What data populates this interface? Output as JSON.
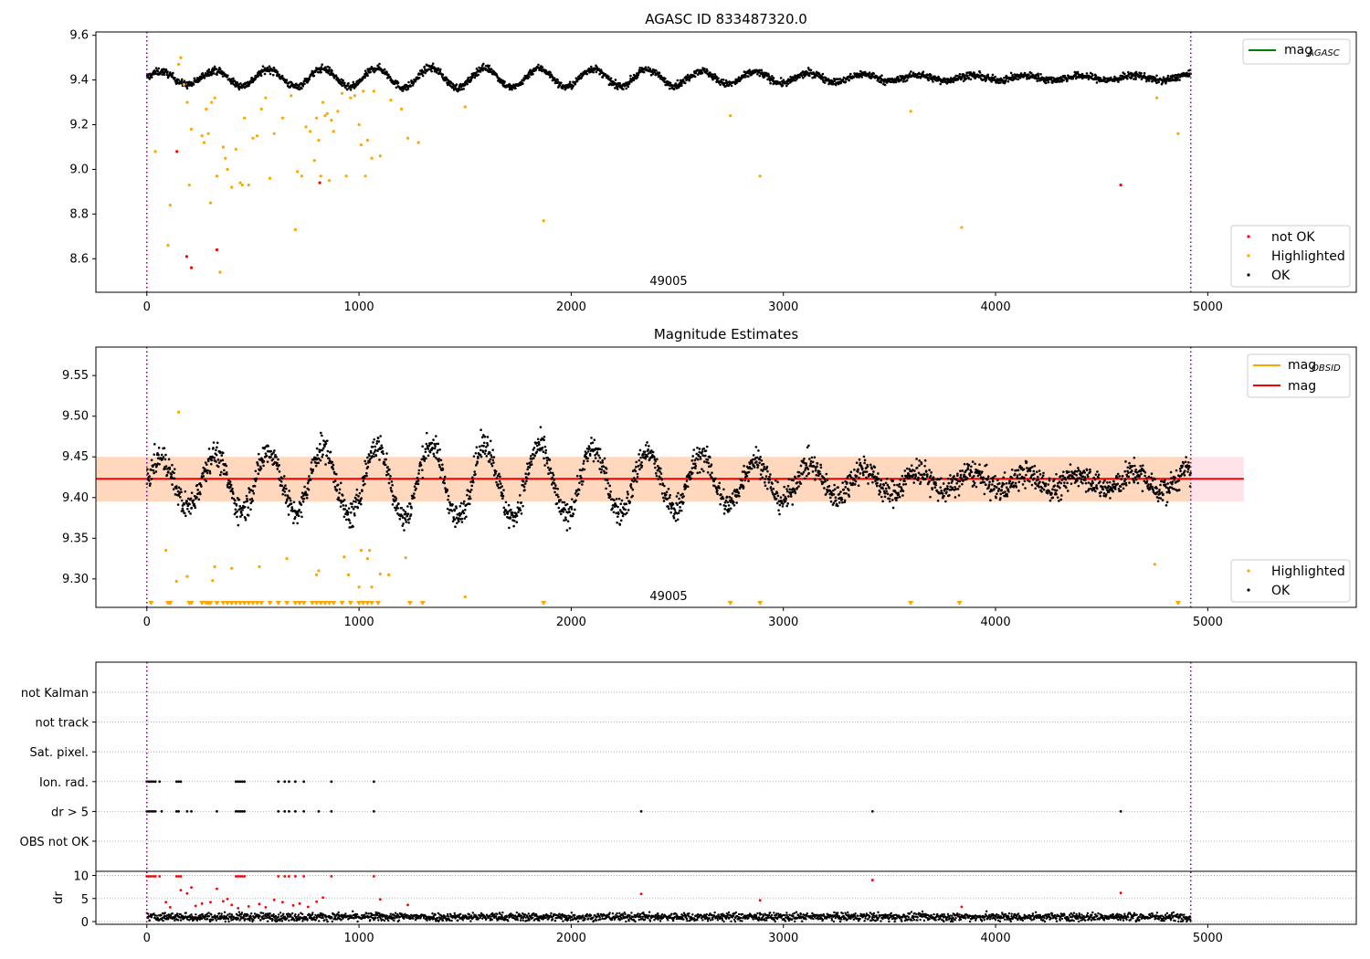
{
  "chart_data": [
    {
      "type": "scatter",
      "title": "AGASC ID 833487320.0",
      "annotation": "49005",
      "xlim": [
        -240,
        5700
      ],
      "ylim": [
        8.45,
        9.615
      ],
      "xticks": [
        "0",
        "1000",
        "2000",
        "3000",
        "4000",
        "5000"
      ],
      "yticks": [
        "8.6",
        "8.8",
        "9.0",
        "9.2",
        "9.4",
        "9.6"
      ],
      "vlines": [
        0,
        4920
      ],
      "series": [
        {
          "name": "mag",
          "name_sub": "AGASC",
          "style": "line",
          "color": "#008000",
          "y": 9.4
        },
        {
          "name": "not OK",
          "color": "#ff0000",
          "points": [
            [
              142,
              9.08
            ],
            [
              188,
              8.61
            ],
            [
              210,
              8.56
            ],
            [
              330,
              8.64
            ],
            [
              815,
              8.94
            ],
            [
              4590,
              8.93
            ]
          ]
        },
        {
          "name": "Highlighted",
          "color": "#ffa500",
          "points": [
            [
              40,
              9.08
            ],
            [
              100,
              8.66
            ],
            [
              110,
              8.84
            ],
            [
              150,
              9.47
            ],
            [
              160,
              9.5
            ],
            [
              175,
              9.38
            ],
            [
              190,
              9.3
            ],
            [
              200,
              8.93
            ],
            [
              210,
              9.18
            ],
            [
              260,
              9.15
            ],
            [
              270,
              9.12
            ],
            [
              280,
              9.27
            ],
            [
              290,
              9.16
            ],
            [
              300,
              8.85
            ],
            [
              305,
              9.3
            ],
            [
              320,
              9.32
            ],
            [
              330,
              8.97
            ],
            [
              345,
              8.54
            ],
            [
              360,
              9.1
            ],
            [
              370,
              9.05
            ],
            [
              380,
              9.0
            ],
            [
              400,
              8.92
            ],
            [
              420,
              9.09
            ],
            [
              440,
              8.94
            ],
            [
              450,
              8.93
            ],
            [
              460,
              9.23
            ],
            [
              480,
              8.93
            ],
            [
              500,
              9.14
            ],
            [
              520,
              9.15
            ],
            [
              540,
              9.27
            ],
            [
              560,
              9.32
            ],
            [
              580,
              8.96
            ],
            [
              600,
              9.16
            ],
            [
              640,
              9.23
            ],
            [
              680,
              9.33
            ],
            [
              700,
              8.73
            ],
            [
              710,
              8.99
            ],
            [
              730,
              8.97
            ],
            [
              750,
              9.19
            ],
            [
              770,
              9.17
            ],
            [
              790,
              9.04
            ],
            [
              800,
              9.23
            ],
            [
              810,
              9.13
            ],
            [
              820,
              8.97
            ],
            [
              830,
              9.3
            ],
            [
              840,
              9.24
            ],
            [
              850,
              9.25
            ],
            [
              860,
              8.95
            ],
            [
              870,
              9.22
            ],
            [
              880,
              9.17
            ],
            [
              900,
              9.26
            ],
            [
              920,
              9.34
            ],
            [
              940,
              8.97
            ],
            [
              960,
              9.32
            ],
            [
              980,
              9.33
            ],
            [
              1000,
              9.2
            ],
            [
              1010,
              9.11
            ],
            [
              1020,
              9.35
            ],
            [
              1030,
              8.97
            ],
            [
              1040,
              9.13
            ],
            [
              1060,
              9.05
            ],
            [
              1070,
              9.35
            ],
            [
              1100,
              9.06
            ],
            [
              1150,
              9.31
            ],
            [
              1200,
              9.27
            ],
            [
              1230,
              9.14
            ],
            [
              1280,
              9.12
            ],
            [
              1500,
              9.28
            ],
            [
              1870,
              8.77
            ],
            [
              2750,
              9.24
            ],
            [
              2890,
              8.97
            ],
            [
              3600,
              9.26
            ],
            [
              3840,
              8.74
            ],
            [
              4760,
              9.32
            ],
            [
              4860,
              9.16
            ]
          ]
        },
        {
          "name": "OK",
          "color": "#000000",
          "baseline": 9.41,
          "amplitude": 0.045,
          "period": 255,
          "x_range": [
            0,
            4920
          ],
          "n": 2600
        }
      ],
      "legend": [
        "not OK",
        "Highlighted",
        "OK"
      ],
      "legend_lines": [
        "mag"
      ]
    },
    {
      "type": "scatter",
      "title": "Magnitude Estimates",
      "annotation": "49005",
      "xlim": [
        -240,
        5700
      ],
      "ylim": [
        9.265,
        9.585
      ],
      "xticks": [
        "0",
        "1000",
        "2000",
        "3000",
        "4000",
        "5000"
      ],
      "yticks": [
        "9.30",
        "9.35",
        "9.40",
        "9.45",
        "9.50",
        "9.55"
      ],
      "vlines": [
        0,
        4920
      ],
      "band": {
        "x": [
          -240,
          5170
        ],
        "y": [
          9.395,
          9.45
        ]
      },
      "series": [
        {
          "name": "mag",
          "name_sub": "OBSID",
          "style": "line",
          "color": "#ffa500",
          "y": 9.423
        },
        {
          "name": "mag",
          "style": "line",
          "color": "#ff0000",
          "y": 9.423
        },
        {
          "name": "Highlighted",
          "color": "#ffa500",
          "points": [
            [
              90,
              9.335
            ],
            [
              140,
              9.297
            ],
            [
              150,
              9.505
            ],
            [
              190,
              9.303
            ],
            [
              310,
              9.298
            ],
            [
              320,
              9.315
            ],
            [
              400,
              9.313
            ],
            [
              530,
              9.315
            ],
            [
              660,
              9.325
            ],
            [
              800,
              9.305
            ],
            [
              810,
              9.31
            ],
            [
              930,
              9.327
            ],
            [
              950,
              9.305
            ],
            [
              1000,
              9.29
            ],
            [
              1010,
              9.335
            ],
            [
              1040,
              9.325
            ],
            [
              1050,
              9.335
            ],
            [
              1060,
              9.29
            ],
            [
              1100,
              9.306
            ],
            [
              1140,
              9.305
            ],
            [
              1220,
              9.326
            ],
            [
              1500,
              9.278
            ],
            [
              4750,
              9.318
            ]
          ],
          "limits_x": [
            20,
            100,
            110,
            200,
            210,
            260,
            280,
            290,
            300,
            330,
            360,
            380,
            400,
            420,
            440,
            460,
            480,
            500,
            520,
            540,
            580,
            620,
            660,
            700,
            720,
            740,
            780,
            800,
            820,
            840,
            860,
            880,
            920,
            960,
            1000,
            1020,
            1040,
            1060,
            1090,
            1240,
            1300,
            1870,
            2750,
            2890,
            3600,
            3830,
            4860
          ]
        },
        {
          "name": "OK",
          "color": "#000000",
          "baseline": 9.42,
          "amplitude": 0.045,
          "period": 255,
          "x_range": [
            0,
            4920
          ],
          "n": 2600
        }
      ],
      "legend": [
        "Highlighted",
        "OK"
      ],
      "legend_lines": [
        "mag_obsid",
        "mag"
      ]
    },
    {
      "type": "scatter",
      "title": "",
      "xlim": [
        -240,
        5700
      ],
      "xticks": [
        "0",
        "1000",
        "2000",
        "3000",
        "4000",
        "5000"
      ],
      "vlines": [
        0,
        4920
      ],
      "flag_rows": [
        "not Kalman",
        "not track",
        "Sat. pixel.",
        "Ion. rad.",
        "dr > 5",
        "OBS not OK"
      ],
      "flags": {
        "Ion. rad.": [
          0,
          10,
          20,
          30,
          40,
          60,
          140,
          150,
          160,
          420,
          430,
          440,
          450,
          460,
          620,
          650,
          670,
          700,
          740,
          870,
          1070
        ],
        "dr > 5": [
          0,
          10,
          20,
          30,
          40,
          70,
          140,
          150,
          190,
          210,
          330,
          420,
          430,
          440,
          450,
          460,
          620,
          650,
          670,
          700,
          740,
          810,
          870,
          1070,
          2330,
          3420,
          4590
        ]
      },
      "dr": {
        "ylabel": "dr",
        "yticks": [
          "0",
          "5",
          "10"
        ],
        "ylim": [
          0,
          10.5
        ],
        "flagged_color": "#ff0000",
        "ok_color": "#000000",
        "flagged_points": [
          [
            0,
            9.8
          ],
          [
            10,
            9.8
          ],
          [
            20,
            9.8
          ],
          [
            30,
            9.8
          ],
          [
            40,
            9.8
          ],
          [
            60,
            9.8
          ],
          [
            140,
            9.8
          ],
          [
            150,
            9.8
          ],
          [
            160,
            9.8
          ],
          [
            420,
            9.8
          ],
          [
            430,
            9.8
          ],
          [
            440,
            9.8
          ],
          [
            450,
            9.8
          ],
          [
            460,
            9.8
          ],
          [
            620,
            9.8
          ],
          [
            650,
            9.8
          ],
          [
            670,
            9.8
          ],
          [
            700,
            9.8
          ],
          [
            740,
            9.8
          ],
          [
            870,
            9.8
          ],
          [
            1070,
            9.8
          ],
          [
            90,
            4.2
          ],
          [
            110,
            3.1
          ],
          [
            160,
            6.8
          ],
          [
            190,
            6.1
          ],
          [
            210,
            7.4
          ],
          [
            230,
            3.4
          ],
          [
            260,
            3.9
          ],
          [
            300,
            4.2
          ],
          [
            330,
            7.1
          ],
          [
            360,
            4.4
          ],
          [
            380,
            4.9
          ],
          [
            400,
            3.6
          ],
          [
            430,
            2.9
          ],
          [
            480,
            3.3
          ],
          [
            530,
            3.8
          ],
          [
            560,
            3.1
          ],
          [
            600,
            4.7
          ],
          [
            640,
            4.2
          ],
          [
            690,
            3.5
          ],
          [
            720,
            3.9
          ],
          [
            760,
            3.2
          ],
          [
            800,
            4.3
          ],
          [
            830,
            5.2
          ],
          [
            1100,
            4.8
          ],
          [
            1230,
            3.6
          ],
          [
            2330,
            6.0
          ],
          [
            2890,
            4.6
          ],
          [
            3420,
            9.0
          ],
          [
            3840,
            3.2
          ],
          [
            4590,
            6.2
          ]
        ],
        "ok_baseline": 1.0,
        "ok_spread": 0.9
      }
    }
  ]
}
